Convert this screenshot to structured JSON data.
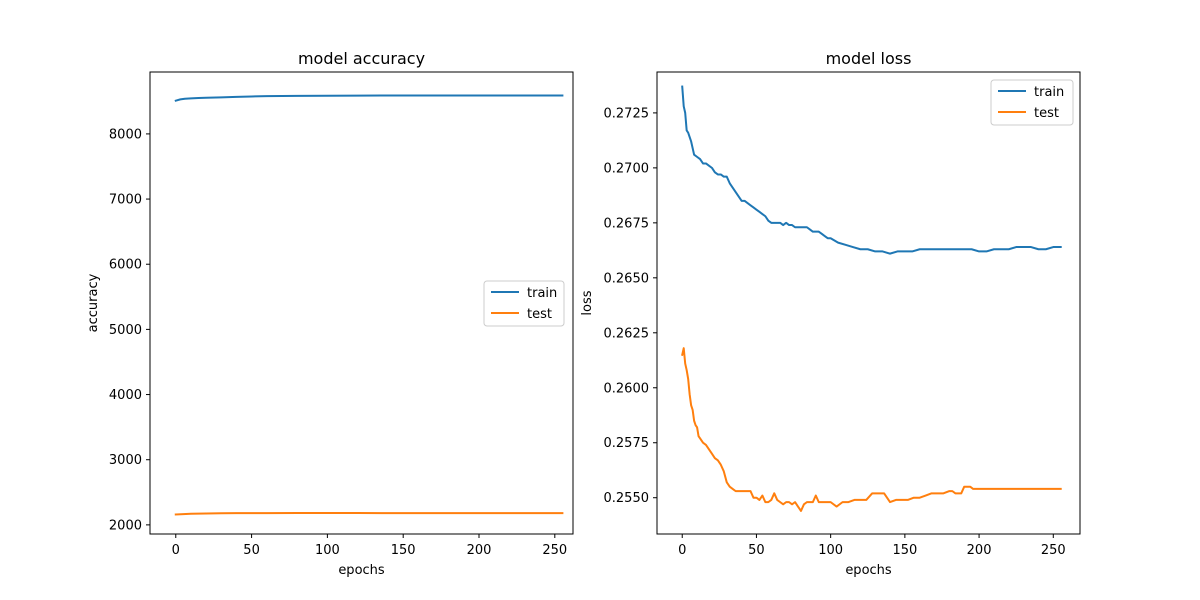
{
  "chart_data": [
    {
      "type": "line",
      "title": "model accuracy",
      "xlabel": "epochs",
      "ylabel": "accuracy",
      "xlim": [
        -17,
        262
      ],
      "ylim": [
        1860,
        8950
      ],
      "xticks": [
        0,
        50,
        100,
        150,
        200,
        250
      ],
      "yticks": [
        2000,
        3000,
        4000,
        5000,
        6000,
        7000,
        8000
      ],
      "legend_position": "center-right",
      "series": [
        {
          "name": "train",
          "color": "#1f77b4",
          "x": [
            0,
            3,
            6,
            10,
            15,
            20,
            30,
            40,
            50,
            60,
            80,
            100,
            120,
            140,
            160,
            180,
            200,
            220,
            240,
            255
          ],
          "values": [
            8510,
            8530,
            8540,
            8545,
            8550,
            8555,
            8560,
            8568,
            8575,
            8580,
            8583,
            8586,
            8588,
            8589,
            8589,
            8589,
            8589,
            8589,
            8589,
            8589
          ]
        },
        {
          "name": "test",
          "color": "#ff7f0e",
          "x": [
            0,
            5,
            10,
            20,
            30,
            40,
            60,
            80,
            100,
            120,
            140,
            160,
            180,
            200,
            220,
            240,
            255
          ],
          "values": [
            2160,
            2165,
            2170,
            2175,
            2178,
            2180,
            2181,
            2182,
            2182,
            2182,
            2181,
            2181,
            2180,
            2180,
            2180,
            2180,
            2180
          ]
        }
      ]
    },
    {
      "type": "line",
      "title": "model loss",
      "xlabel": "epochs",
      "ylabel": "loss",
      "xlim": [
        -17,
        268
      ],
      "ylim": [
        0.25335,
        0.27436
      ],
      "xticks": [
        0,
        50,
        100,
        150,
        200,
        250
      ],
      "yticks": [
        0.255,
        0.2575,
        0.26,
        0.2625,
        0.265,
        0.2675,
        0.27,
        0.2725
      ],
      "ytick_labels": [
        "0.2550",
        "0.2575",
        "0.2600",
        "0.2625",
        "0.2650",
        "0.2675",
        "0.2700",
        "0.2725"
      ],
      "legend_position": "upper right",
      "series": [
        {
          "name": "train",
          "color": "#1f77b4",
          "x": [
            0,
            1,
            2,
            3,
            4,
            6,
            8,
            10,
            12,
            14,
            16,
            18,
            20,
            22,
            24,
            26,
            28,
            30,
            32,
            34,
            36,
            38,
            40,
            42,
            44,
            46,
            48,
            50,
            52,
            54,
            56,
            58,
            60,
            62,
            64,
            66,
            68,
            70,
            72,
            74,
            76,
            78,
            80,
            82,
            84,
            86,
            88,
            90,
            92,
            94,
            96,
            98,
            100,
            105,
            110,
            115,
            120,
            125,
            130,
            135,
            140,
            145,
            150,
            155,
            160,
            165,
            170,
            175,
            180,
            185,
            190,
            195,
            200,
            205,
            210,
            215,
            220,
            225,
            230,
            235,
            240,
            245,
            250,
            255
          ],
          "values": [
            0.2737,
            0.2728,
            0.2725,
            0.2717,
            0.2716,
            0.2712,
            0.2706,
            0.2705,
            0.2704,
            0.2702,
            0.2702,
            0.2701,
            0.27,
            0.2698,
            0.2697,
            0.2697,
            0.2696,
            0.2696,
            0.2693,
            0.2691,
            0.2689,
            0.2687,
            0.2685,
            0.2685,
            0.2684,
            0.2683,
            0.2682,
            0.2681,
            0.268,
            0.2679,
            0.2678,
            0.2676,
            0.2675,
            0.2675,
            0.2675,
            0.2675,
            0.2674,
            0.2675,
            0.2674,
            0.2674,
            0.2673,
            0.2673,
            0.2673,
            0.2673,
            0.2673,
            0.2672,
            0.2671,
            0.2671,
            0.2671,
            0.267,
            0.2669,
            0.2668,
            0.2668,
            0.2666,
            0.2665,
            0.2664,
            0.2663,
            0.2663,
            0.2662,
            0.2662,
            0.2661,
            0.2662,
            0.2662,
            0.2662,
            0.2663,
            0.2663,
            0.2663,
            0.2663,
            0.2663,
            0.2663,
            0.2663,
            0.2663,
            0.2662,
            0.2662,
            0.2663,
            0.2663,
            0.2663,
            0.2664,
            0.2664,
            0.2664,
            0.2663,
            0.2663,
            0.2664,
            0.2664
          ]
        },
        {
          "name": "test",
          "color": "#ff7f0e",
          "x": [
            0,
            1,
            2,
            3,
            4,
            5,
            6,
            7,
            8,
            9,
            10,
            11,
            12,
            14,
            16,
            18,
            20,
            22,
            24,
            26,
            28,
            30,
            32,
            34,
            36,
            38,
            40,
            42,
            44,
            46,
            48,
            50,
            52,
            54,
            56,
            58,
            60,
            62,
            64,
            66,
            68,
            70,
            72,
            74,
            76,
            78,
            80,
            82,
            84,
            86,
            88,
            90,
            92,
            94,
            96,
            98,
            100,
            104,
            108,
            112,
            116,
            120,
            124,
            128,
            132,
            136,
            140,
            144,
            148,
            152,
            156,
            160,
            164,
            168,
            172,
            176,
            180,
            182,
            184,
            186,
            188,
            190,
            192,
            194,
            196,
            200,
            210,
            220,
            230,
            240,
            250,
            255
          ],
          "values": [
            0.2615,
            0.2618,
            0.2611,
            0.2608,
            0.2604,
            0.2597,
            0.2592,
            0.259,
            0.2585,
            0.2583,
            0.2582,
            0.2578,
            0.2577,
            0.2575,
            0.2574,
            0.2572,
            0.257,
            0.2568,
            0.2567,
            0.2565,
            0.2562,
            0.2557,
            0.2555,
            0.2554,
            0.2553,
            0.2553,
            0.2553,
            0.2553,
            0.2553,
            0.2553,
            0.255,
            0.255,
            0.2549,
            0.2551,
            0.2548,
            0.2548,
            0.2549,
            0.2552,
            0.2549,
            0.2548,
            0.2547,
            0.2548,
            0.2548,
            0.2547,
            0.2548,
            0.2546,
            0.2544,
            0.2547,
            0.2548,
            0.2548,
            0.2548,
            0.2551,
            0.2548,
            0.2548,
            0.2548,
            0.2548,
            0.2548,
            0.2546,
            0.2548,
            0.2548,
            0.2549,
            0.2549,
            0.2549,
            0.2552,
            0.2552,
            0.2552,
            0.2548,
            0.2549,
            0.2549,
            0.2549,
            0.255,
            0.255,
            0.2551,
            0.2552,
            0.2552,
            0.2552,
            0.2553,
            0.2553,
            0.2552,
            0.2552,
            0.2552,
            0.2555,
            0.2555,
            0.2555,
            0.2554,
            0.2554,
            0.2554,
            0.2554,
            0.2554,
            0.2554,
            0.2554,
            0.2554
          ]
        }
      ]
    }
  ]
}
